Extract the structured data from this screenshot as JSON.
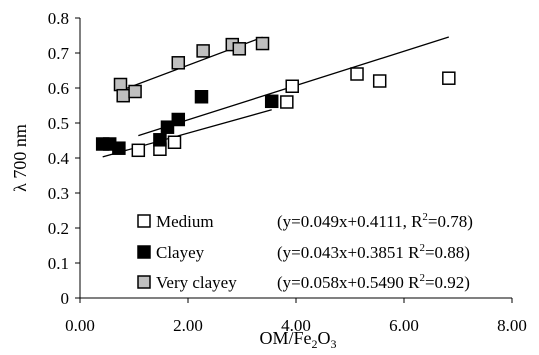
{
  "chart_data": {
    "type": "scatter",
    "title": "",
    "xlabel": {
      "main": "OM/Fe",
      "sub": "2",
      "tail": "O",
      "sub2": "3"
    },
    "ylabel": "λ 700 nm",
    "xlim": [
      0,
      8
    ],
    "ylim": [
      0,
      0.8
    ],
    "x_ticks": [
      "0.00",
      "2.00",
      "4.00",
      "6.00",
      "8.00"
    ],
    "y_ticks": [
      "0",
      "0.1",
      "0.2",
      "0.3",
      "0.4",
      "0.5",
      "0.6",
      "0.7",
      "0.8"
    ],
    "grid": false,
    "legend_position": "bottom-left",
    "series": [
      {
        "name": "Medium",
        "marker": "open-square",
        "color": "#ffffff",
        "stroke": "#000000",
        "x": [
          1.08,
          1.48,
          1.75,
          3.83,
          3.93,
          5.13,
          5.55,
          6.83
        ],
        "y": [
          0.422,
          0.425,
          0.445,
          0.56,
          0.605,
          0.64,
          0.62,
          0.628
        ],
        "fit": {
          "slope": 0.049,
          "intercept": 0.4111,
          "x_range": [
            1.08,
            6.83
          ]
        },
        "equation": {
          "pre": "(y=0.049x+0.4111, R",
          "sup": "2",
          "post": "=0.78)"
        }
      },
      {
        "name": "Clayey",
        "marker": "filled-square",
        "color": "#000000",
        "stroke": "#000000",
        "x": [
          0.42,
          0.55,
          0.72,
          1.48,
          1.62,
          1.82,
          2.25,
          3.55
        ],
        "y": [
          0.44,
          0.44,
          0.428,
          0.452,
          0.488,
          0.51,
          0.575,
          0.562
        ],
        "fit": {
          "slope": 0.043,
          "intercept": 0.3851,
          "x_range": [
            0.42,
            3.55
          ]
        },
        "equation": {
          "pre": "(y=0.043x+0.3851 R",
          "sup": "2",
          "post": "=0.88)"
        }
      },
      {
        "name": "Very clayey",
        "marker": "gray-square",
        "color": "#c0c0c0",
        "stroke": "#000000",
        "x": [
          0.75,
          0.8,
          1.02,
          1.82,
          2.28,
          2.82,
          2.95,
          3.38
        ],
        "y": [
          0.61,
          0.578,
          0.59,
          0.672,
          0.706,
          0.724,
          0.712,
          0.727
        ],
        "fit": {
          "slope": 0.058,
          "intercept": 0.549,
          "x_range": [
            0.75,
            3.38
          ]
        },
        "equation": {
          "pre": "(y=0.058x+0.5490 R",
          "sup": "2",
          "post": "=0.92)"
        }
      }
    ]
  }
}
